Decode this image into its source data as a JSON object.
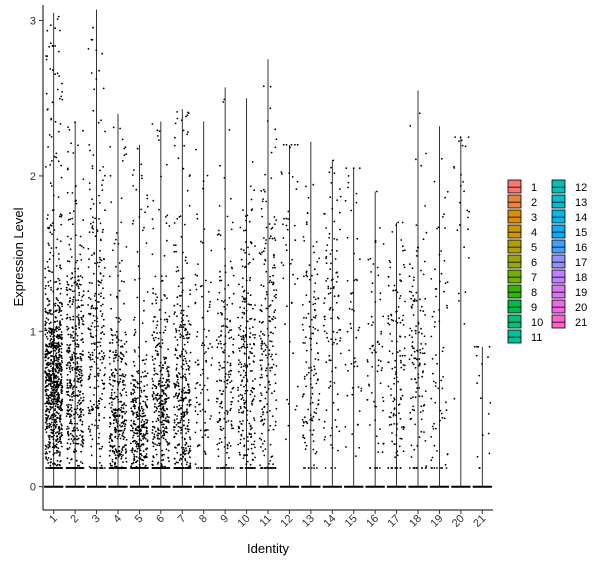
{
  "chart_data": {
    "type": "violin",
    "title": "",
    "xlabel": "Identity",
    "ylabel": "Expression Level",
    "ylim": [
      -0.15,
      3.1
    ],
    "yticks": [
      0,
      1,
      2,
      3
    ],
    "categories": [
      "1",
      "2",
      "3",
      "4",
      "5",
      "6",
      "7",
      "8",
      "9",
      "10",
      "11",
      "12",
      "13",
      "14",
      "15",
      "16",
      "17",
      "18",
      "19",
      "20",
      "21"
    ],
    "series": [
      {
        "category": "1",
        "max": 3.05,
        "color": "#F8766D",
        "density": 1.0,
        "center": 0.65,
        "spread": 0.32
      },
      {
        "category": "2",
        "max": 2.35,
        "color": "#EC823C",
        "density": 0.55,
        "center": 0.6,
        "spread": 0.45
      },
      {
        "category": "3",
        "max": 3.07,
        "color": "#DD8D00",
        "density": 0.3,
        "center": 0.9,
        "spread": 0.55
      },
      {
        "category": "4",
        "max": 2.4,
        "color": "#CA9700",
        "density": 0.45,
        "center": 0.4,
        "spread": 0.35
      },
      {
        "category": "5",
        "max": 2.2,
        "color": "#B3A000",
        "density": 0.4,
        "center": 0.35,
        "spread": 0.25
      },
      {
        "category": "6",
        "max": 2.35,
        "color": "#97A900",
        "density": 0.45,
        "center": 0.4,
        "spread": 0.4
      },
      {
        "category": "7",
        "max": 2.43,
        "color": "#71B000",
        "density": 0.45,
        "center": 0.45,
        "spread": 0.45
      },
      {
        "category": "8",
        "max": 2.35,
        "color": "#2FB600",
        "density": 0.12,
        "center": 0.6,
        "spread": 0.5
      },
      {
        "category": "9",
        "max": 2.57,
        "color": "#00BB4B",
        "density": 0.2,
        "center": 0.65,
        "spread": 0.45
      },
      {
        "category": "10",
        "max": 2.5,
        "color": "#00BF76",
        "density": 0.3,
        "center": 0.7,
        "spread": 0.45
      },
      {
        "category": "11",
        "max": 2.75,
        "color": "#00C098",
        "density": 0.25,
        "center": 0.85,
        "spread": 0.55
      },
      {
        "category": "12",
        "max": 2.2,
        "color": "#00C0B7",
        "density": 0.05,
        "center": 1.5,
        "spread": 0.5
      },
      {
        "category": "13",
        "max": 2.22,
        "color": "#00BDD1",
        "density": 0.15,
        "center": 0.75,
        "spread": 0.45
      },
      {
        "category": "14",
        "max": 2.1,
        "color": "#00B7E8",
        "density": 0.12,
        "center": 1.2,
        "spread": 0.5
      },
      {
        "category": "15",
        "max": 2.05,
        "color": "#00AEFA",
        "density": 0.06,
        "center": 1.1,
        "spread": 0.55
      },
      {
        "category": "16",
        "max": 1.9,
        "color": "#3DA1FF",
        "density": 0.08,
        "center": 0.8,
        "spread": 0.5
      },
      {
        "category": "17",
        "max": 1.7,
        "color": "#8F91FF",
        "density": 0.15,
        "center": 0.75,
        "spread": 0.4
      },
      {
        "category": "18",
        "max": 2.55,
        "color": "#BE80FF",
        "density": 0.15,
        "center": 0.8,
        "spread": 0.45
      },
      {
        "category": "19",
        "max": 2.32,
        "color": "#DE71F9",
        "density": 0.08,
        "center": 0.8,
        "spread": 0.55
      },
      {
        "category": "20",
        "max": 2.25,
        "color": "#F265E7",
        "density": 0.03,
        "center": 1.6,
        "spread": 0.55
      },
      {
        "category": "21",
        "max": 0.9,
        "color": "#FF61C9",
        "density": 0.02,
        "center": 0.6,
        "spread": 0.3
      }
    ],
    "legend": {
      "position": "right",
      "columns": 2
    }
  }
}
